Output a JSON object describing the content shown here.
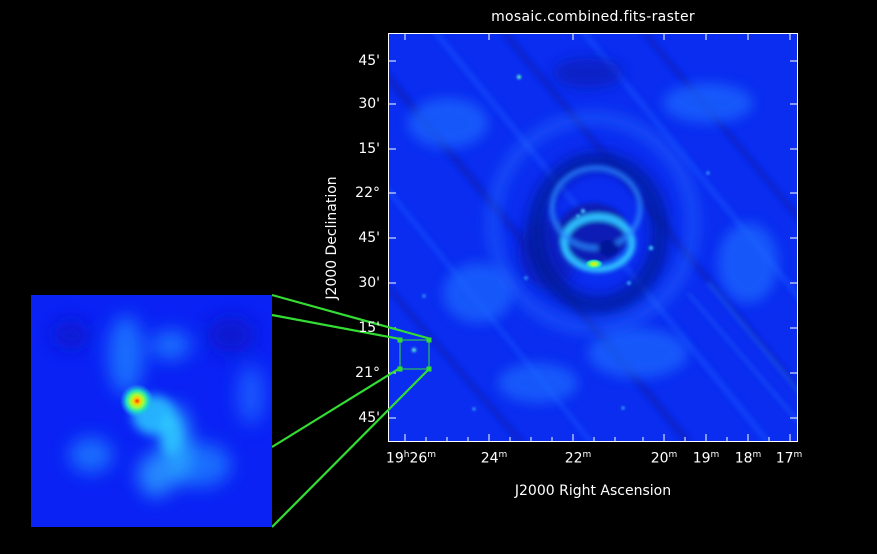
{
  "title": "mosaic.combined.fits-raster",
  "axes": {
    "xlabel": "J2000 Right Ascension",
    "ylabel": "J2000 Declination",
    "yticks": [
      {
        "text": "45'"
      },
      {
        "text": "30'"
      },
      {
        "text": "15'"
      },
      {
        "text": "22°"
      },
      {
        "text": "45'"
      },
      {
        "text": "30'"
      },
      {
        "text": "15'"
      },
      {
        "text": "21°"
      },
      {
        "text": "45'"
      }
    ],
    "xticks": [
      {
        "main": "19",
        "unit1": "h",
        "mid": "26",
        "unit2": "m"
      },
      {
        "main": "24",
        "unit2": "m"
      },
      {
        "main": "22",
        "unit2": "m"
      },
      {
        "main": "20",
        "unit2": "m"
      },
      {
        "main": "19",
        "unit2": "m"
      },
      {
        "main": "18",
        "unit2": "m"
      },
      {
        "main": "17",
        "unit2": "m"
      }
    ]
  },
  "colors": {
    "background": "#000000",
    "image_base": "#0a2df0",
    "zoom_box": "#33dd33",
    "hotspot": "#ffd000"
  }
}
